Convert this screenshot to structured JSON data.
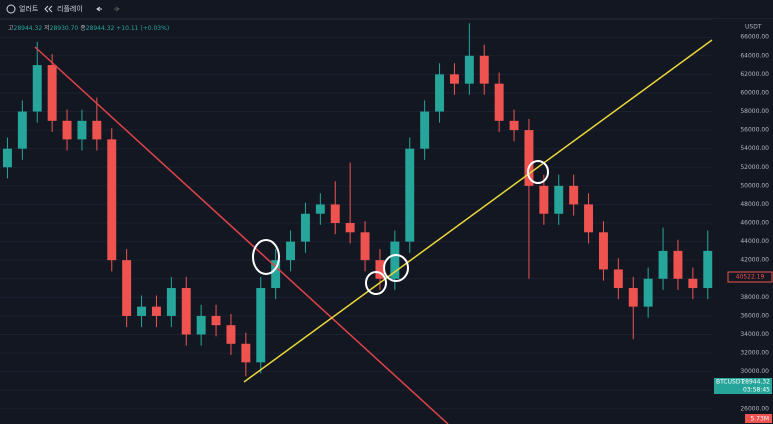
{
  "toolbar": {
    "alert": "얼러트",
    "replay": "리플레이"
  },
  "chart_data": {
    "type": "candlestick",
    "ohlc_header": {
      "high_label": "고",
      "high": "28944.32",
      "low_label": "저",
      "low": "28930.70",
      "close_label": "종",
      "close": "28944.32",
      "change": "+10.11 (+0.03%)"
    },
    "axis_unit": "USDT",
    "price_tags": {
      "last_marked": "40522.19",
      "symbol": "BTCUSDT",
      "price": "28944.32",
      "countdown": "03:58:45",
      "volume": "5.73M"
    },
    "up_color": "#26a69a",
    "down_color": "#ef5350",
    "grid": true,
    "ylim": [
      24365,
      67960
    ],
    "yticks": [
      {
        "value": 26000,
        "label": "26000.00"
      },
      {
        "value": 28000,
        "label": "28000.00"
      },
      {
        "value": 30000,
        "label": "30000.00"
      },
      {
        "value": 32000,
        "label": "32000.00"
      },
      {
        "value": 34000,
        "label": "34000.00"
      },
      {
        "value": 36000,
        "label": "36000.00"
      },
      {
        "value": 38000,
        "label": "38000.00"
      },
      {
        "value": 40000,
        "label": "40000.00"
      },
      {
        "value": 42000,
        "label": "42000.00"
      },
      {
        "value": 44000,
        "label": "44000.00"
      },
      {
        "value": 46000,
        "label": "46000.00"
      },
      {
        "value": 48000,
        "label": "48000.00"
      },
      {
        "value": 50000,
        "label": "50000.00"
      },
      {
        "value": 52000,
        "label": "52000.00"
      },
      {
        "value": 54000,
        "label": "54000.00"
      },
      {
        "value": 56000,
        "label": "56000.00"
      },
      {
        "value": 58000,
        "label": "58000.00"
      },
      {
        "value": 60000,
        "label": "60000.00"
      },
      {
        "value": 62000,
        "label": "62000.00"
      },
      {
        "value": 64000,
        "label": "64000.00"
      },
      {
        "value": 66000,
        "label": "66000.00"
      }
    ],
    "open": [
      52000,
      54000,
      58000,
      63000,
      57000,
      55000,
      57000,
      55000,
      42000,
      36000,
      37000,
      36000,
      39000,
      34000,
      36000,
      35000,
      33000,
      31000,
      39000,
      42000,
      44000,
      47000,
      48000,
      46000,
      45000,
      42000,
      40000,
      44000,
      54000,
      58000,
      62000,
      61000,
      64000,
      61000,
      57000,
      56000,
      50000,
      47000,
      50000,
      48000,
      45000,
      41000,
      39000,
      37000,
      40000,
      43000,
      40000,
      39000,
      43000,
      39000
    ],
    "high": [
      55200,
      59200,
      65500,
      64200,
      58200,
      58200,
      59500,
      56200,
      43200,
      38200,
      38200,
      40200,
      40200,
      37200,
      37200,
      36200,
      34200,
      40200,
      43200,
      45200,
      48200,
      49200,
      50500,
      52500,
      46200,
      43200,
      45200,
      55200,
      59200,
      63200,
      63200,
      67500,
      65200,
      62200,
      58200,
      57200,
      51200,
      51200,
      51200,
      49200,
      46200,
      42200,
      40200,
      41200,
      45500,
      44200,
      41200,
      45200,
      44200,
      41700
    ],
    "low": [
      50800,
      52800,
      56800,
      55800,
      53800,
      53800,
      53800,
      40800,
      34800,
      34800,
      34800,
      34800,
      32800,
      32800,
      33800,
      31800,
      29500,
      29800,
      37800,
      40800,
      42800,
      45800,
      44800,
      43800,
      40800,
      38800,
      38800,
      42800,
      52800,
      56800,
      59800,
      59800,
      59800,
      55800,
      54800,
      40000,
      45800,
      45800,
      46800,
      43800,
      39800,
      37800,
      33500,
      35800,
      38800,
      38800,
      37800,
      37800,
      34500,
      37800
    ],
    "close": [
      54000,
      58000,
      63000,
      57000,
      55000,
      57000,
      55000,
      42000,
      36000,
      37000,
      36000,
      39000,
      34000,
      36000,
      35000,
      33000,
      31000,
      39000,
      42000,
      44000,
      47000,
      48000,
      46000,
      45000,
      42000,
      40000,
      44000,
      54000,
      58000,
      62000,
      61000,
      64000,
      61000,
      57000,
      56000,
      50000,
      47000,
      50000,
      48000,
      45000,
      41000,
      39000,
      37000,
      40000,
      43000,
      40000,
      39000,
      43000,
      39000,
      40500
    ]
  }
}
